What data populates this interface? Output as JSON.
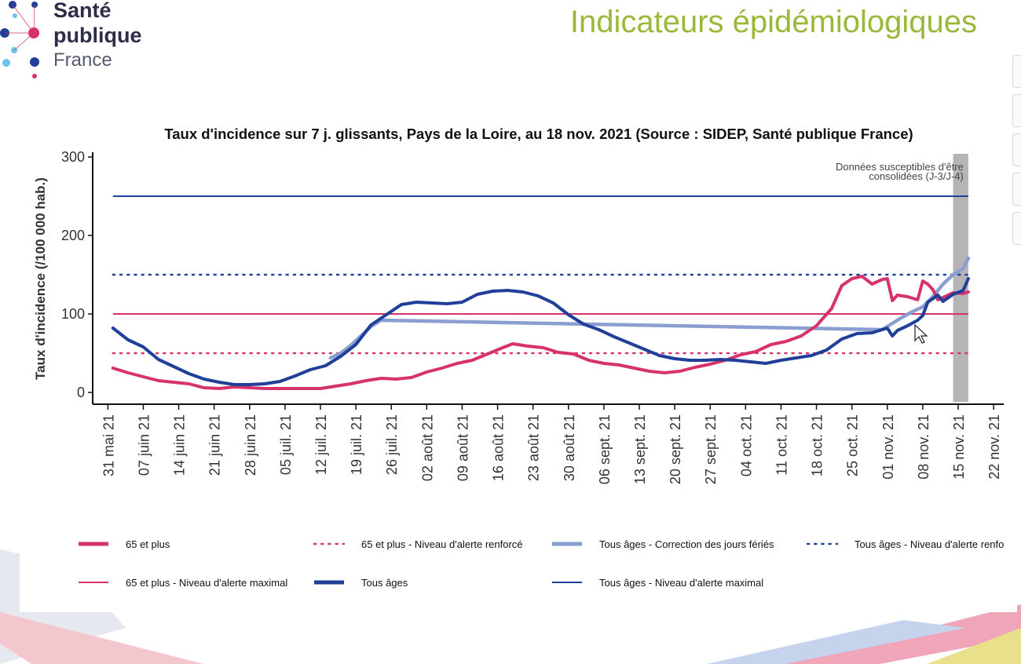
{
  "header": {
    "logo_line1": "Santé",
    "logo_line2": "publique",
    "logo_line3": "France",
    "slide_title": "Indicateurs épidémiologiques"
  },
  "chart_data": {
    "type": "line",
    "title": "Taux d'incidence sur 7 j. glissants, Pays de la Loire, au 18 nov. 2021 (Source : SIDEP, Santé publique France)",
    "ylabel": "Taux d'incidence (/100 000 hab.)",
    "xlabel": "",
    "ylim": [
      0,
      300
    ],
    "xlim": [
      "2021-05-28",
      "2021-11-24"
    ],
    "yticks": [
      0,
      100,
      200,
      300
    ],
    "xticks": [
      {
        "date": "2021-05-31",
        "label": "31 mai 21"
      },
      {
        "date": "2021-06-07",
        "label": "07 juin 21"
      },
      {
        "date": "2021-06-14",
        "label": "14 juin 21"
      },
      {
        "date": "2021-06-21",
        "label": "21 juin 21"
      },
      {
        "date": "2021-06-28",
        "label": "28 juin 21"
      },
      {
        "date": "2021-07-05",
        "label": "05 juil. 21"
      },
      {
        "date": "2021-07-12",
        "label": "12 juil. 21"
      },
      {
        "date": "2021-07-19",
        "label": "19 juil. 21"
      },
      {
        "date": "2021-07-26",
        "label": "26 juil. 21"
      },
      {
        "date": "2021-08-02",
        "label": "02 août 21"
      },
      {
        "date": "2021-08-09",
        "label": "09 août 21"
      },
      {
        "date": "2021-08-16",
        "label": "16 août 21"
      },
      {
        "date": "2021-08-23",
        "label": "23 août 21"
      },
      {
        "date": "2021-08-30",
        "label": "30 août 21"
      },
      {
        "date": "2021-09-06",
        "label": "06 sept. 21"
      },
      {
        "date": "2021-09-13",
        "label": "13 sept. 21"
      },
      {
        "date": "2021-09-20",
        "label": "20 sept. 21"
      },
      {
        "date": "2021-09-27",
        "label": "27 sept. 21"
      },
      {
        "date": "2021-10-04",
        "label": "04 oct. 21"
      },
      {
        "date": "2021-10-11",
        "label": "11 oct. 21"
      },
      {
        "date": "2021-10-18",
        "label": "18 oct. 21"
      },
      {
        "date": "2021-10-25",
        "label": "25 oct. 21"
      },
      {
        "date": "2021-11-01",
        "label": "01 nov. 21"
      },
      {
        "date": "2021-11-08",
        "label": "08 nov. 21"
      },
      {
        "date": "2021-11-15",
        "label": "15 nov. 21"
      },
      {
        "date": "2021-11-22",
        "label": "22 nov. 21"
      }
    ],
    "shaded_band": {
      "from": "2021-11-14",
      "to": "2021-11-17",
      "color": "#b5b5b5",
      "label_line1": "Données susceptibles d'être",
      "label_line2": "consolidées (J-3/J-4)"
    },
    "reference_lines": [
      {
        "name": "65 et plus - Niveau d'alerte renforcé",
        "y": 50,
        "color": "#d6336c",
        "dash": "dotted"
      },
      {
        "name": "65 et plus - Niveau d'alerte maximal",
        "y": 100,
        "color": "#d6336c",
        "dash": "solid"
      },
      {
        "name": "Tous âges - Niveau d'alerte renforcé",
        "y": 150,
        "color": "#1f3f99",
        "dash": "dotted"
      },
      {
        "name": "Tous âges - Niveau d'alerte maximal",
        "y": 250,
        "color": "#1f3f99",
        "dash": "solid"
      }
    ],
    "series": [
      {
        "name": "Tous âges - Correction des jours fériés",
        "color": "#8a9ed1",
        "points": [
          [
            "2021-07-14",
            44
          ],
          [
            "2021-07-16",
            50
          ],
          [
            "2021-07-18",
            60
          ],
          [
            "2021-07-20",
            72
          ],
          [
            "2021-07-22",
            84
          ],
          [
            "2021-07-24",
            92
          ],
          [
            "2021-10-31",
            80
          ],
          [
            "2021-11-02",
            88
          ],
          [
            "2021-11-04",
            96
          ],
          [
            "2021-11-06",
            103
          ],
          [
            "2021-11-08",
            109
          ],
          [
            "2021-11-10",
            122
          ],
          [
            "2021-11-12",
            138
          ],
          [
            "2021-11-14",
            150
          ],
          [
            "2021-11-16",
            158
          ],
          [
            "2021-11-17",
            171
          ]
        ]
      },
      {
        "name": "65 et plus",
        "color": "#d6336c",
        "points": [
          [
            "2021-06-01",
            31
          ],
          [
            "2021-06-04",
            25
          ],
          [
            "2021-06-07",
            20
          ],
          [
            "2021-06-10",
            15
          ],
          [
            "2021-06-13",
            13
          ],
          [
            "2021-06-16",
            11
          ],
          [
            "2021-06-19",
            6
          ],
          [
            "2021-06-22",
            5
          ],
          [
            "2021-06-25",
            7
          ],
          [
            "2021-06-28",
            6
          ],
          [
            "2021-07-01",
            5
          ],
          [
            "2021-07-05",
            5
          ],
          [
            "2021-07-09",
            5
          ],
          [
            "2021-07-12",
            5
          ],
          [
            "2021-07-15",
            8
          ],
          [
            "2021-07-18",
            11
          ],
          [
            "2021-07-21",
            15
          ],
          [
            "2021-07-24",
            18
          ],
          [
            "2021-07-27",
            17
          ],
          [
            "2021-07-30",
            19
          ],
          [
            "2021-08-02",
            26
          ],
          [
            "2021-08-05",
            31
          ],
          [
            "2021-08-08",
            37
          ],
          [
            "2021-08-11",
            41
          ],
          [
            "2021-08-14",
            49
          ],
          [
            "2021-08-17",
            57
          ],
          [
            "2021-08-19",
            62
          ],
          [
            "2021-08-22",
            59
          ],
          [
            "2021-08-25",
            57
          ],
          [
            "2021-08-28",
            51
          ],
          [
            "2021-08-31",
            49
          ],
          [
            "2021-09-03",
            41
          ],
          [
            "2021-09-06",
            37
          ],
          [
            "2021-09-09",
            35
          ],
          [
            "2021-09-12",
            31
          ],
          [
            "2021-09-15",
            27
          ],
          [
            "2021-09-18",
            25
          ],
          [
            "2021-09-21",
            27
          ],
          [
            "2021-09-24",
            32
          ],
          [
            "2021-09-27",
            36
          ],
          [
            "2021-09-30",
            41
          ],
          [
            "2021-10-03",
            48
          ],
          [
            "2021-10-06",
            52
          ],
          [
            "2021-10-09",
            61
          ],
          [
            "2021-10-12",
            65
          ],
          [
            "2021-10-15",
            72
          ],
          [
            "2021-10-18",
            85
          ],
          [
            "2021-10-21",
            107
          ],
          [
            "2021-10-23",
            136
          ],
          [
            "2021-10-25",
            145
          ],
          [
            "2021-10-27",
            148
          ],
          [
            "2021-10-29",
            138
          ],
          [
            "2021-10-31",
            144
          ],
          [
            "2021-11-01",
            145
          ],
          [
            "2021-11-02",
            117
          ],
          [
            "2021-11-03",
            124
          ],
          [
            "2021-11-05",
            122
          ],
          [
            "2021-11-07",
            118
          ],
          [
            "2021-11-08",
            142
          ],
          [
            "2021-11-09",
            138
          ],
          [
            "2021-11-10",
            131
          ],
          [
            "2021-11-11",
            118
          ],
          [
            "2021-11-12",
            121
          ],
          [
            "2021-11-14",
            127
          ],
          [
            "2021-11-16",
            126
          ],
          [
            "2021-11-17",
            128
          ]
        ]
      },
      {
        "name": "Tous âges",
        "color": "#1f3f99",
        "points": [
          [
            "2021-06-01",
            82
          ],
          [
            "2021-06-04",
            67
          ],
          [
            "2021-06-07",
            58
          ],
          [
            "2021-06-10",
            42
          ],
          [
            "2021-06-13",
            33
          ],
          [
            "2021-06-16",
            24
          ],
          [
            "2021-06-19",
            17
          ],
          [
            "2021-06-22",
            13
          ],
          [
            "2021-06-25",
            10
          ],
          [
            "2021-06-28",
            10
          ],
          [
            "2021-07-01",
            11
          ],
          [
            "2021-07-04",
            14
          ],
          [
            "2021-07-07",
            21
          ],
          [
            "2021-07-10",
            29
          ],
          [
            "2021-07-13",
            34
          ],
          [
            "2021-07-16",
            46
          ],
          [
            "2021-07-19",
            61
          ],
          [
            "2021-07-22",
            86
          ],
          [
            "2021-07-25",
            99
          ],
          [
            "2021-07-28",
            112
          ],
          [
            "2021-07-31",
            115
          ],
          [
            "2021-08-03",
            114
          ],
          [
            "2021-08-06",
            113
          ],
          [
            "2021-08-09",
            115
          ],
          [
            "2021-08-12",
            125
          ],
          [
            "2021-08-15",
            129
          ],
          [
            "2021-08-18",
            130
          ],
          [
            "2021-08-21",
            128
          ],
          [
            "2021-08-24",
            123
          ],
          [
            "2021-08-27",
            114
          ],
          [
            "2021-08-30",
            99
          ],
          [
            "2021-09-02",
            87
          ],
          [
            "2021-09-05",
            80
          ],
          [
            "2021-09-08",
            71
          ],
          [
            "2021-09-11",
            63
          ],
          [
            "2021-09-14",
            55
          ],
          [
            "2021-09-17",
            47
          ],
          [
            "2021-09-20",
            43
          ],
          [
            "2021-09-23",
            41
          ],
          [
            "2021-09-26",
            41
          ],
          [
            "2021-09-29",
            42
          ],
          [
            "2021-10-02",
            41
          ],
          [
            "2021-10-05",
            39
          ],
          [
            "2021-10-08",
            37
          ],
          [
            "2021-10-11",
            41
          ],
          [
            "2021-10-14",
            44
          ],
          [
            "2021-10-17",
            47
          ],
          [
            "2021-10-20",
            54
          ],
          [
            "2021-10-23",
            68
          ],
          [
            "2021-10-26",
            75
          ],
          [
            "2021-10-29",
            76
          ],
          [
            "2021-10-31",
            80
          ],
          [
            "2021-11-01",
            82
          ],
          [
            "2021-11-02",
            72
          ],
          [
            "2021-11-03",
            79
          ],
          [
            "2021-11-05",
            85
          ],
          [
            "2021-11-07",
            92
          ],
          [
            "2021-11-08",
            98
          ],
          [
            "2021-11-09",
            115
          ],
          [
            "2021-11-11",
            124
          ],
          [
            "2021-11-12",
            116
          ],
          [
            "2021-11-14",
            125
          ],
          [
            "2021-11-16",
            130
          ],
          [
            "2021-11-17",
            145
          ]
        ]
      }
    ],
    "legend": {
      "placement": "bottom",
      "items": [
        {
          "label": "65 et plus",
          "color": "#d6336c",
          "style": "thick"
        },
        {
          "label": "65 et plus - Niveau d'alerte renforcé",
          "color": "#d6336c",
          "style": "dotted"
        },
        {
          "label": "Tous âges - Correction des jours fériés",
          "color": "#8a9ed1",
          "style": "thick"
        },
        {
          "label": "Tous âges - Niveau d'alerte renfo",
          "color": "#1f3f99",
          "style": "dotted"
        },
        {
          "label": "65 et plus - Niveau d'alerte maximal",
          "color": "#d6336c",
          "style": "thin"
        },
        {
          "label": "Tous âges",
          "color": "#1f3f99",
          "style": "thick"
        },
        {
          "label": "Tous âges - Niveau d'alerte maximal",
          "color": "#1f3f99",
          "style": "thin"
        }
      ]
    }
  }
}
